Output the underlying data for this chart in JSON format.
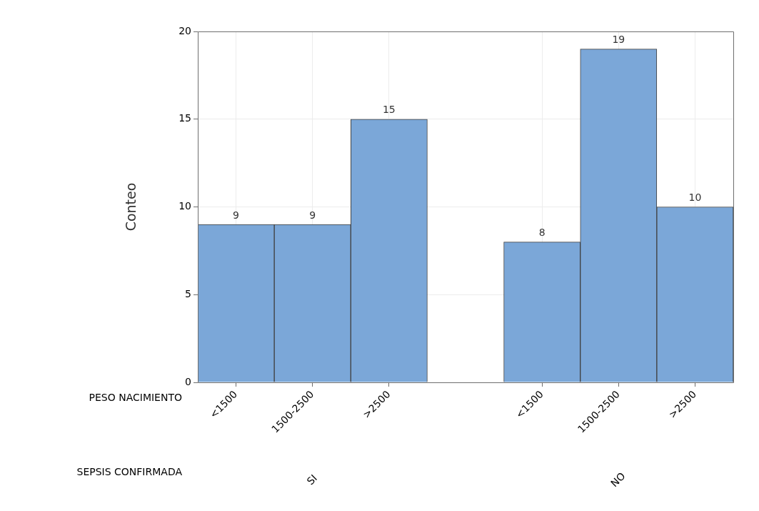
{
  "chart_data": {
    "type": "bar",
    "xlabel": "PESO NACIMIENTO",
    "ylabel": "Conteo",
    "categories": [
      "<1500",
      "1500-2500",
      ">2500",
      null,
      "<1500",
      "1500-2500",
      ">2500"
    ],
    "values": [
      9,
      9,
      15,
      null,
      8,
      19,
      10
    ],
    "color": "#7ba7d8",
    "ylim": [
      0,
      20
    ],
    "yticks": [
      0,
      5,
      10,
      15,
      20
    ],
    "grid": true,
    "legend": false,
    "data_labels": true,
    "annotations": [
      "SEPSIS CONFIRMADA",
      "SI",
      "NO"
    ]
  }
}
